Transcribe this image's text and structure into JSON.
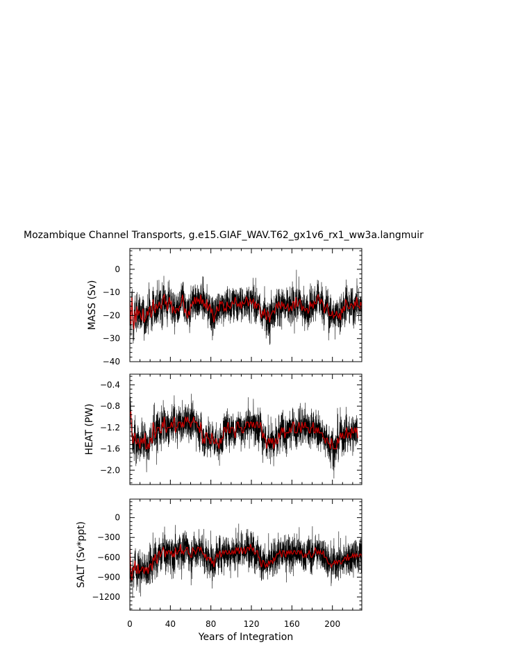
{
  "title": "Mozambique Channel Transports, g.e15.GIAF_WAV.T62_gx1v6_rx1_ww3a.langmuir",
  "colors": {
    "raw": "#000000",
    "smooth": "#cc0000",
    "axes": "#000000"
  },
  "chart_data": [
    {
      "type": "line",
      "ylabel": "MASS (Sv)",
      "xlim": [
        0,
        229
      ],
      "ylim": [
        -40,
        9
      ],
      "yticks": [
        -40,
        -30,
        -20,
        -10,
        0
      ],
      "ytick_labels": [
        "−40",
        "−30",
        "−20",
        "−10",
        "0"
      ],
      "series": [
        {
          "values": [
            -14,
            -24,
            -12,
            -22,
            -26,
            -18,
            -23,
            -16,
            -20,
            -18,
            -19,
            -21,
            -22,
            -17,
            -23,
            -22,
            -21,
            -18,
            -20,
            -17,
            -16,
            -21,
            -19,
            -13,
            -17,
            -19,
            -15,
            -17,
            -16,
            -14,
            -16,
            -17,
            -14,
            -12,
            -11,
            -15,
            -14,
            -18,
            -15,
            -12,
            -15,
            -14,
            -19,
            -16,
            -18,
            -19,
            -17,
            -17,
            -18,
            -16,
            -16,
            -14,
            -11,
            -14,
            -19,
            -17,
            -20,
            -21,
            -18,
            -20,
            -15,
            -16,
            -14,
            -15,
            -12,
            -15,
            -12,
            -14,
            -13,
            -15,
            -11,
            -15,
            -13,
            -16,
            -15,
            -17,
            -13,
            -18,
            -16,
            -15,
            -19,
            -17,
            -20,
            -23,
            -20,
            -19,
            -16,
            -18,
            -18,
            -14,
            -15,
            -14,
            -15,
            -18,
            -17,
            -18,
            -14,
            -16,
            -16,
            -17,
            -16,
            -14,
            -15,
            -15,
            -12,
            -14,
            -16,
            -15,
            -16,
            -14,
            -17,
            -14,
            -15,
            -15,
            -14,
            -12,
            -13,
            -16,
            -14,
            -13,
            -15,
            -14,
            -13,
            -17,
            -14,
            -17,
            -15,
            -15,
            -16,
            -20,
            -21,
            -18,
            -20,
            -17,
            -20,
            -22,
            -18,
            -19,
            -23,
            -20,
            -19,
            -18,
            -18,
            -19,
            -16,
            -15,
            -17,
            -14,
            -16,
            -17,
            -14,
            -16,
            -15,
            -17,
            -17,
            -16,
            -15,
            -18,
            -17,
            -16,
            -18,
            -14,
            -14,
            -17,
            -12,
            -16,
            -16,
            -14,
            -13,
            -15,
            -18,
            -16,
            -17,
            -18,
            -17,
            -17,
            -19,
            -18,
            -14,
            -16,
            -15,
            -17,
            -14,
            -15,
            -15,
            -12,
            -11,
            -13,
            -15,
            -13,
            -14,
            -15,
            -19,
            -17,
            -16,
            -15,
            -18,
            -20,
            -20,
            -20,
            -18,
            -21,
            -20,
            -20,
            -18,
            -20,
            -21,
            -19,
            -22,
            -17,
            -19,
            -16,
            -18,
            -13,
            -14,
            -16,
            -17,
            -17,
            -15,
            -15,
            -16,
            -17,
            -14,
            -16,
            -12,
            -16,
            -16,
            -17,
            -14,
            -17
          ]
        }
      ]
    },
    {
      "type": "line",
      "ylabel": "HEAT (PW)",
      "xlim": [
        0,
        229
      ],
      "ylim": [
        -2.27,
        -0.2
      ],
      "yticks": [
        -2.0,
        -1.6,
        -1.2,
        -0.8,
        -0.4
      ],
      "ytick_labels": [
        "−2.0",
        "−1.6",
        "−1.2",
        "−0.8",
        "−0.4"
      ],
      "series": [
        {
          "values": [
            -1.0,
            -0.9,
            -1.3,
            -1.5,
            -1.4,
            -1.3,
            -1.5,
            -1.5,
            -1.4,
            -1.5,
            -1.6,
            -1.4,
            -1.5,
            -1.4,
            -1.5,
            -1.3,
            -1.6,
            -1.6,
            -1.5,
            -1.6,
            -1.4,
            -1.4,
            -1.5,
            -1.1,
            -1.2,
            -1.4,
            -1.3,
            -1.2,
            -1.2,
            -1.2,
            -1.3,
            -1.3,
            -1.1,
            -1.2,
            -1.0,
            -1.2,
            -1.3,
            -1.2,
            -1.2,
            -1.2,
            -1.2,
            -1.1,
            -1.2,
            -1.1,
            -1.0,
            -1.3,
            -1.2,
            -1.2,
            -1.1,
            -1.1,
            -1.1,
            -1.2,
            -1.1,
            -1.2,
            -1.1,
            -1.0,
            -1.1,
            -1.0,
            -1.1,
            -1.1,
            -1.2,
            -1.1,
            -1.1,
            -1.0,
            -1.1,
            -1.1,
            -1.1,
            -1.2,
            -1.2,
            -1.3,
            -1.1,
            -1.3,
            -1.5,
            -1.4,
            -1.5,
            -1.3,
            -1.3,
            -1.4,
            -1.4,
            -1.5,
            -1.5,
            -1.3,
            -1.4,
            -1.5,
            -1.5,
            -1.4,
            -1.5,
            -1.5,
            -1.6,
            -1.4,
            -1.5,
            -1.4,
            -1.4,
            -1.2,
            -1.2,
            -1.3,
            -1.2,
            -1.1,
            -1.3,
            -1.3,
            -1.2,
            -1.2,
            -1.2,
            -1.3,
            -1.4,
            -1.2,
            -1.1,
            -1.1,
            -1.2,
            -1.2,
            -1.2,
            -1.3,
            -1.3,
            -1.2,
            -1.2,
            -1.1,
            -1.1,
            -1.1,
            -1.2,
            -1.1,
            -1.1,
            -1.2,
            -1.1,
            -1.2,
            -1.2,
            -1.1,
            -1.1,
            -1.2,
            -1.2,
            -1.1,
            -1.2,
            -1.4,
            -1.3,
            -1.4,
            -1.4,
            -1.6,
            -1.5,
            -1.4,
            -1.5,
            -1.4,
            -1.5,
            -1.4,
            -1.6,
            -1.5,
            -1.4,
            -1.5,
            -1.5,
            -1.3,
            -1.4,
            -1.3,
            -1.2,
            -1.3,
            -1.2,
            -1.4,
            -1.3,
            -1.3,
            -1.3,
            -1.3,
            -1.2,
            -1.3,
            -1.2,
            -1.1,
            -1.1,
            -1.3,
            -1.3,
            -1.3,
            -1.2,
            -1.1,
            -1.2,
            -1.3,
            -1.1,
            -1.2,
            -1.2,
            -1.1,
            -1.2,
            -1.2,
            -1.2,
            -1.3,
            -1.3,
            -1.2,
            -1.2,
            -1.1,
            -1.3,
            -1.3,
            -1.2,
            -1.3,
            -1.2,
            -1.3,
            -1.3,
            -1.3,
            -1.3,
            -1.4,
            -1.4,
            -1.5,
            -1.4,
            -1.4,
            -1.5,
            -1.5,
            -1.6,
            -1.4,
            -1.5,
            -1.6,
            -1.6,
            -1.6,
            -1.6,
            -1.4,
            -1.5,
            -1.4,
            -1.3,
            -1.4,
            -1.3,
            -1.4,
            -1.4,
            -1.3,
            -1.2,
            -1.4,
            -1.3,
            -1.3,
            -1.4,
            -1.2,
            -1.3,
            -1.3,
            -1.2,
            -1.3,
            -1.2,
            -1.4
          ]
        }
      ]
    },
    {
      "type": "line",
      "ylabel": "SALT (Sv*ppt)",
      "xlim": [
        0,
        229
      ],
      "ylim": [
        -1400,
        280
      ],
      "yticks": [
        -1200,
        -900,
        -600,
        -300,
        0
      ],
      "ytick_labels": [
        "−1200",
        "−900",
        "−600",
        "−300",
        "0"
      ],
      "series": [
        {
          "values": [
            -450,
            -850,
            -950,
            -750,
            -800,
            -650,
            -800,
            -850,
            -700,
            -850,
            -800,
            -800,
            -750,
            -750,
            -850,
            -750,
            -800,
            -750,
            -850,
            -750,
            -700,
            -700,
            -800,
            -600,
            -650,
            -550,
            -650,
            -700,
            -550,
            -500,
            -600,
            -550,
            -500,
            -450,
            -500,
            -600,
            -500,
            -550,
            -500,
            -500,
            -550,
            -500,
            -600,
            -550,
            -600,
            -450,
            -550,
            -550,
            -500,
            -500,
            -400,
            -550,
            -500,
            -550,
            -500,
            -500,
            -450,
            -450,
            -550,
            -550,
            -600,
            -600,
            -450,
            -500,
            -500,
            -550,
            -500,
            -450,
            -450,
            -500,
            -450,
            -500,
            -550,
            -550,
            -600,
            -550,
            -650,
            -600,
            -600,
            -650,
            -600,
            -700,
            -650,
            -750,
            -650,
            -600,
            -550,
            -600,
            -550,
            -500,
            -600,
            -550,
            -500,
            -550,
            -500,
            -500,
            -550,
            -550,
            -500,
            -550,
            -550,
            -500,
            -550,
            -500,
            -550,
            -450,
            -500,
            -450,
            -550,
            -500,
            -450,
            -550,
            -500,
            -450,
            -550,
            -500,
            -450,
            -450,
            -500,
            -400,
            -450,
            -500,
            -450,
            -550,
            -550,
            -500,
            -500,
            -600,
            -600,
            -700,
            -750,
            -650,
            -650,
            -700,
            -750,
            -700,
            -750,
            -650,
            -700,
            -650,
            -650,
            -700,
            -600,
            -650,
            -600,
            -550,
            -550,
            -550,
            -500,
            -550,
            -600,
            -500,
            -500,
            -550,
            -600,
            -500,
            -550,
            -500,
            -550,
            -500,
            -550,
            -550,
            -500,
            -500,
            -550,
            -550,
            -500,
            -500,
            -550,
            -500,
            -550,
            -600,
            -600,
            -550,
            -600,
            -550,
            -550,
            -500,
            -550,
            -600,
            -600,
            -550,
            -550,
            -450,
            -500,
            -550,
            -500,
            -550,
            -500,
            -550,
            -550,
            -500,
            -600,
            -600,
            -600,
            -650,
            -700,
            -700,
            -700,
            -750,
            -700,
            -700,
            -650,
            -700,
            -650,
            -700,
            -650,
            -650,
            -700,
            -700,
            -650,
            -650,
            -600,
            -600,
            -650,
            -550,
            -650,
            -600,
            -600,
            -600,
            -550,
            -600,
            -550,
            -600,
            -550,
            -600,
            -600,
            -550,
            -550,
            -600
          ]
        }
      ]
    }
  ],
  "xaxis": {
    "label": "Years of Integration",
    "ticks": [
      0,
      40,
      80,
      120,
      160,
      200
    ],
    "tick_labels": [
      "0",
      "40",
      "80",
      "120",
      "160",
      "200"
    ],
    "minor_step": 10
  }
}
